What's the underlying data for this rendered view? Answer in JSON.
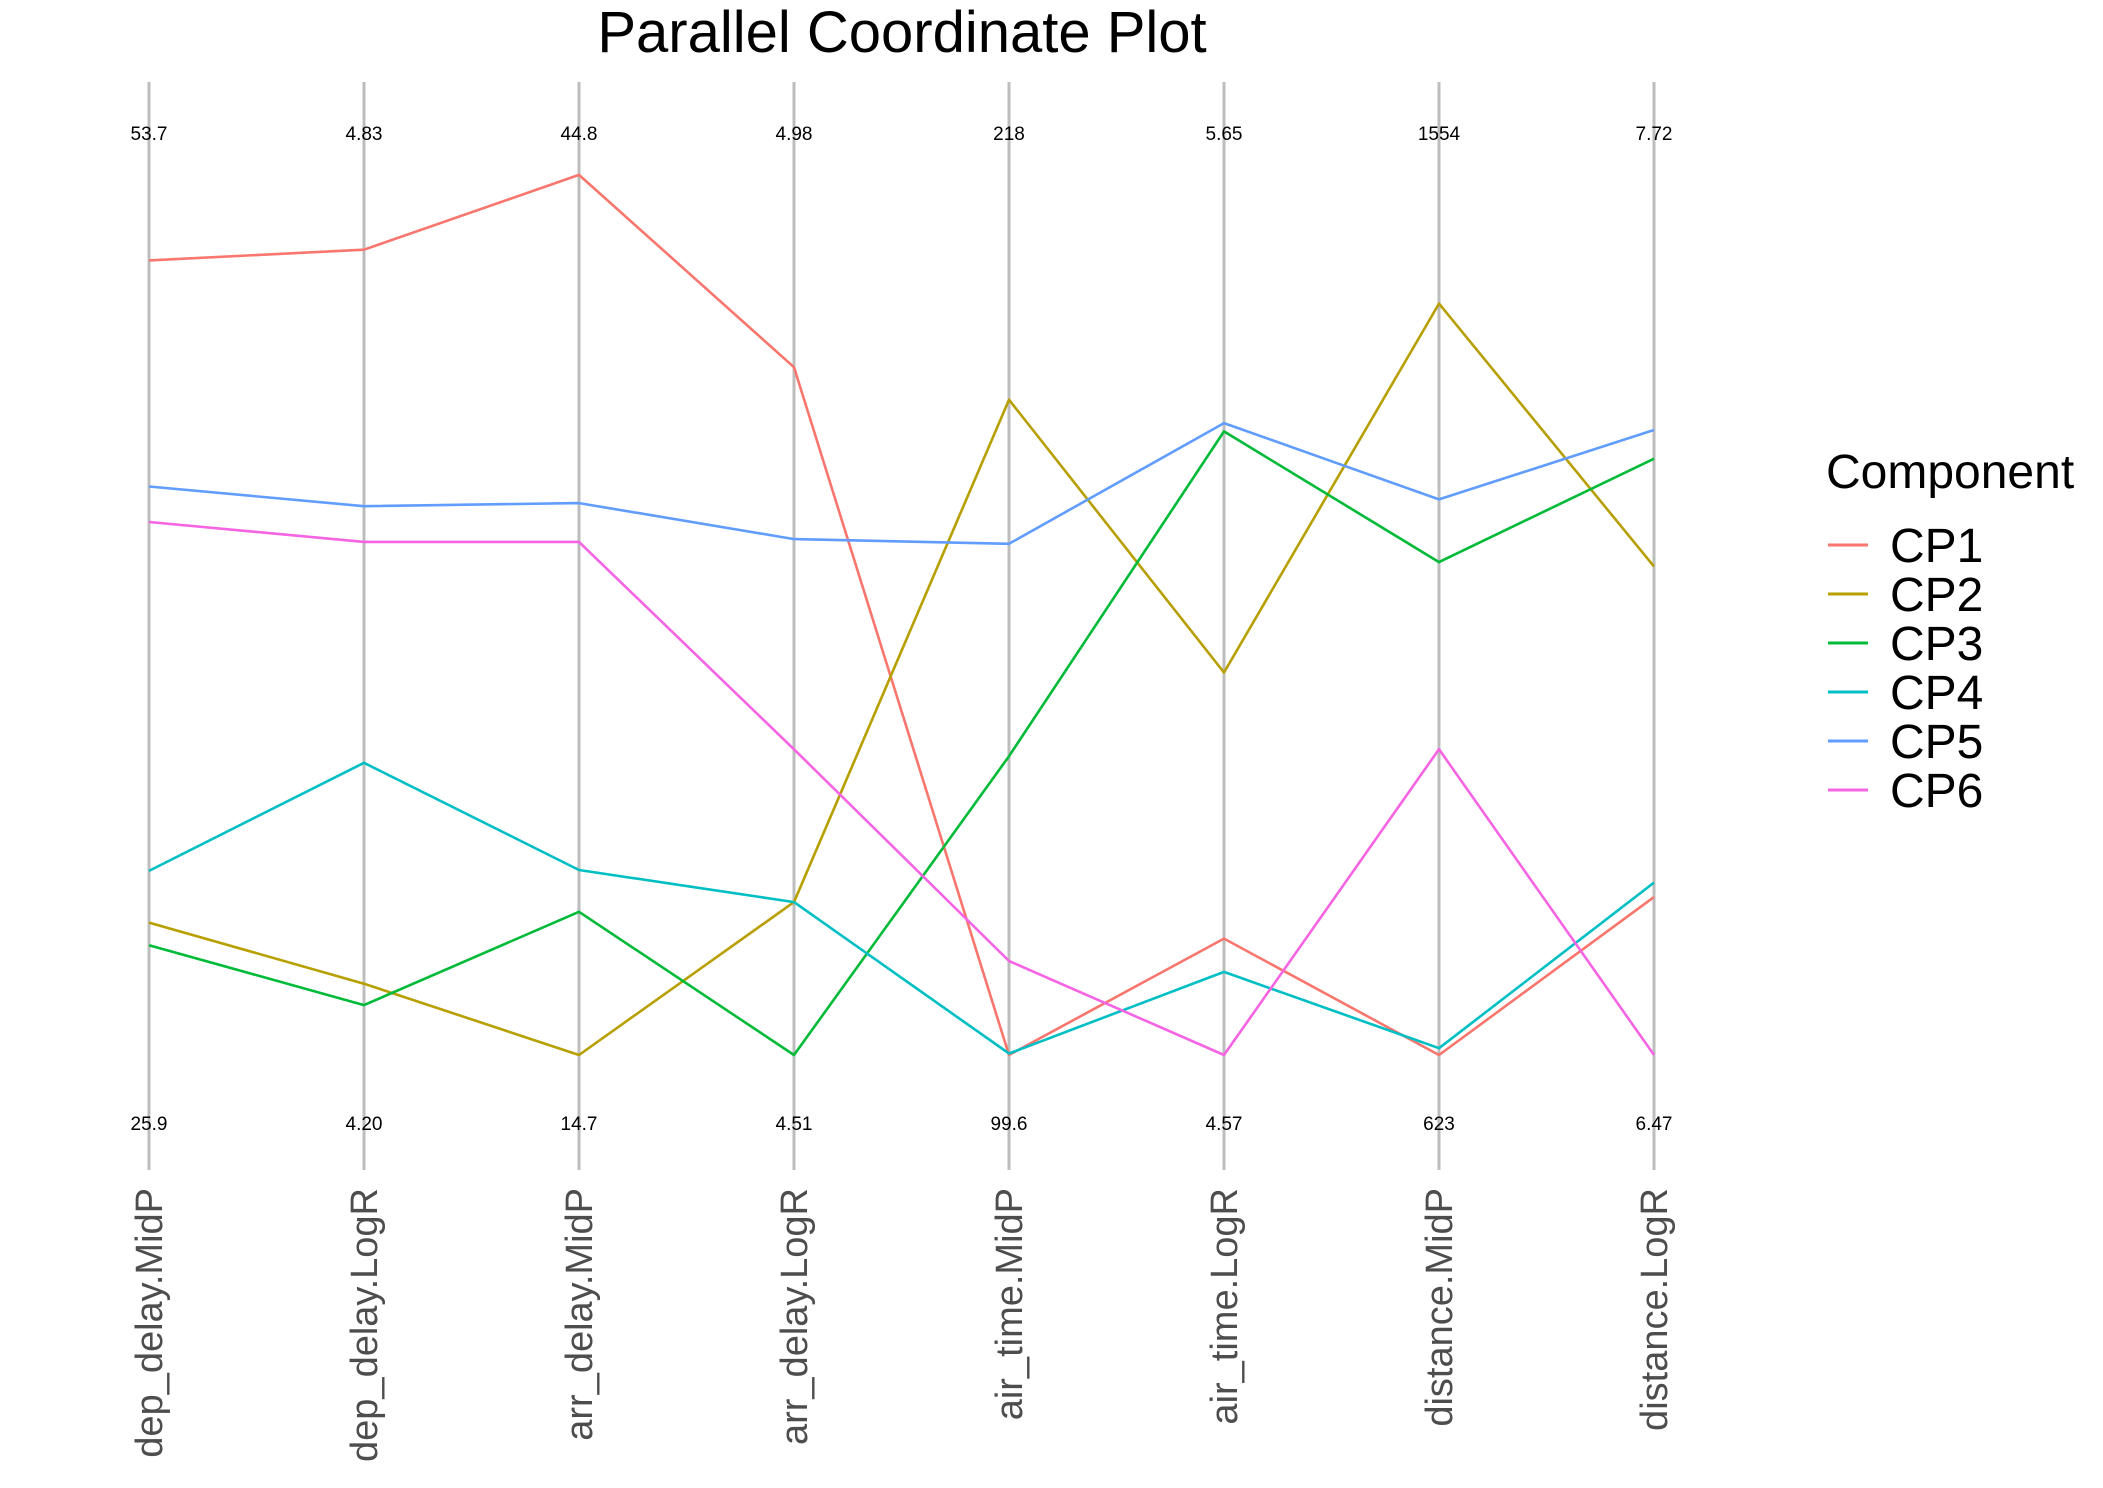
{
  "chart_data": {
    "type": "line",
    "title": "Parallel Coordinate Plot",
    "axes": [
      {
        "name": "dep_delay.MidP",
        "max_label": "53.7",
        "min_label": "25.9",
        "max": 53.7,
        "min": 25.9
      },
      {
        "name": "dep_delay.LogR",
        "max_label": "4.83",
        "min_label": "4.20",
        "max": 4.83,
        "min": 4.2
      },
      {
        "name": "arr_delay.MidP",
        "max_label": "44.8",
        "min_label": "14.7",
        "max": 44.8,
        "min": 14.7
      },
      {
        "name": "arr_delay.LogR",
        "max_label": "4.98",
        "min_label": "4.51",
        "max": 4.98,
        "min": 4.51
      },
      {
        "name": "air_time.MidP",
        "max_label": "218",
        "min_label": "99.6",
        "max": 218,
        "min": 99.6
      },
      {
        "name": "air_time.LogR",
        "max_label": "5.65",
        "min_label": "4.57",
        "max": 5.65,
        "min": 4.57
      },
      {
        "name": "distance.MidP",
        "max_label": "1554",
        "min_label": "623",
        "max": 1554,
        "min": 623
      },
      {
        "name": "distance.LogR",
        "max_label": "7.72",
        "min_label": "6.47",
        "max": 7.72,
        "min": 6.47
      }
    ],
    "series": [
      {
        "name": "CP1",
        "color": "#F8766D",
        "values": [
          50.5,
          4.765,
          44.2,
          4.87,
          99.6,
          4.71,
          623,
          6.69
        ]
      },
      {
        "name": "CP2",
        "color": "#B79F00",
        "values": [
          30.0,
          4.25,
          14.7,
          4.59,
          186,
          5.03,
          1402,
          7.15
        ]
      },
      {
        "name": "CP3",
        "color": "#00BA38",
        "values": [
          29.3,
          4.235,
          19.5,
          4.51,
          139,
          5.32,
          1134,
          7.3
        ]
      },
      {
        "name": "CP4",
        "color": "#00BFC4",
        "values": [
          31.6,
          4.405,
          20.9,
          4.59,
          99.8,
          4.67,
          630,
          6.71
        ]
      },
      {
        "name": "CP5",
        "color": "#619CFF",
        "values": [
          43.5,
          4.585,
          33.2,
          4.78,
          167,
          5.33,
          1199,
          7.34
        ]
      },
      {
        "name": "CP6",
        "color": "#F564E3",
        "values": [
          42.4,
          4.56,
          31.9,
          4.67,
          112,
          4.57,
          940,
          6.47
        ]
      }
    ],
    "legend": {
      "title": "Component",
      "position": "right"
    },
    "grid": false
  }
}
